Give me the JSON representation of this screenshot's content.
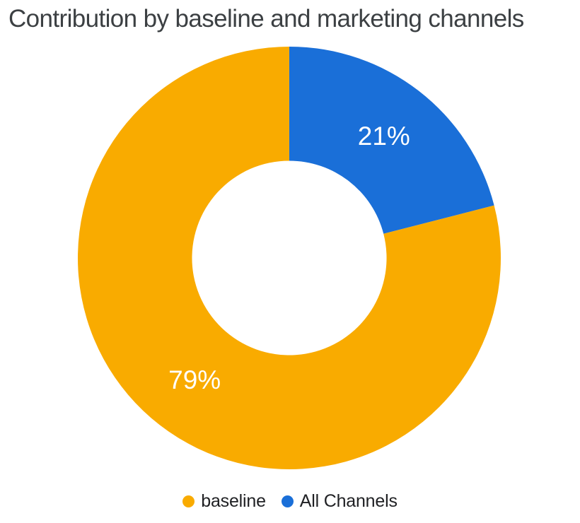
{
  "page": {
    "title": "Contribution by baseline and marketing channels"
  },
  "colors": {
    "background": "#FFFFFF",
    "title_text": "#3C4043",
    "legend_text": "#202124",
    "slice_label_text": "#FFFFFF",
    "baseline_orange": "#F9AB00",
    "all_channels_blue": "#1A6FD8"
  },
  "chart_data": {
    "type": "pie",
    "subtype": "donut",
    "title": "Contribution by baseline and marketing channels",
    "categories": [
      "baseline",
      "All Channels"
    ],
    "values": [
      79,
      21
    ],
    "unit": "%",
    "slices": [
      {
        "label": "All Channels",
        "value": 21,
        "pct_label": "21%",
        "color": "#1A6FD8"
      },
      {
        "label": "baseline",
        "value": 79,
        "pct_label": "79%",
        "color": "#F9AB00"
      }
    ],
    "draw": {
      "start_angle_deg": 0,
      "direction": "clockwise",
      "inner_radius_ratio": 0.46,
      "label_radius_ratio": 0.73
    },
    "legend_position": "bottom",
    "grid": false
  },
  "legend": {
    "items": [
      {
        "label": "baseline",
        "color": "#F9AB00"
      },
      {
        "label": "All Channels",
        "color": "#1A6FD8"
      }
    ]
  }
}
